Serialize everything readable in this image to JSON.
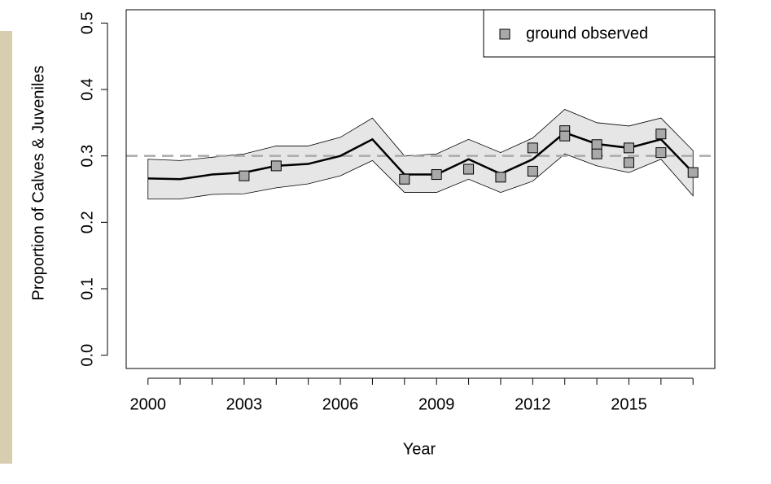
{
  "chart_data": {
    "type": "line",
    "x_label": "Year",
    "y_label": "Proportion of Calves & Juveniles",
    "x": [
      2000,
      2001,
      2002,
      2003,
      2004,
      2005,
      2006,
      2007,
      2008,
      2009,
      2010,
      2011,
      2012,
      2013,
      2014,
      2015,
      2016,
      2017
    ],
    "fit": {
      "color": "#000000",
      "values": [
        0.266,
        0.265,
        0.272,
        0.275,
        0.285,
        0.288,
        0.3,
        0.325,
        0.272,
        0.272,
        0.295,
        0.273,
        0.295,
        0.335,
        0.318,
        0.312,
        0.325,
        0.275
      ]
    },
    "band": {
      "color": "#e6e6e6",
      "upper": [
        0.295,
        0.293,
        0.298,
        0.303,
        0.315,
        0.315,
        0.328,
        0.357,
        0.3,
        0.303,
        0.325,
        0.305,
        0.327,
        0.37,
        0.35,
        0.345,
        0.357,
        0.308
      ],
      "lower": [
        0.235,
        0.235,
        0.242,
        0.243,
        0.252,
        0.258,
        0.27,
        0.293,
        0.245,
        0.245,
        0.265,
        0.245,
        0.262,
        0.303,
        0.285,
        0.275,
        0.295,
        0.24
      ]
    },
    "series": [
      {
        "name": "ground observed",
        "color": "#a9a9a9",
        "marker": "square",
        "x": [
          2003,
          2004,
          2008,
          2009,
          2010,
          2011,
          2012,
          2012,
          2013,
          2013,
          2014,
          2014,
          2015,
          2015,
          2016,
          2016,
          2017
        ],
        "values": [
          0.27,
          0.285,
          0.265,
          0.272,
          0.28,
          0.268,
          0.312,
          0.277,
          0.338,
          0.33,
          0.317,
          0.303,
          0.312,
          0.29,
          0.333,
          0.305,
          0.275
        ]
      }
    ],
    "hline": {
      "value": 0.3,
      "color": "#aaaaaa",
      "dashed": true
    },
    "xlim": [
      1999.32,
      2017.68
    ],
    "ylim": [
      -0.02,
      0.52
    ],
    "xticks": [
      2000,
      2003,
      2006,
      2009,
      2012,
      2015
    ],
    "xminorticks": [
      2001,
      2002,
      2004,
      2005,
      2007,
      2008,
      2010,
      2011,
      2013,
      2014,
      2016,
      2017
    ],
    "yticks": [
      {
        "value": 0,
        "label": "0.0"
      },
      0.1,
      0.2,
      0.3,
      0.4,
      0.5
    ],
    "legend": "top-right"
  }
}
